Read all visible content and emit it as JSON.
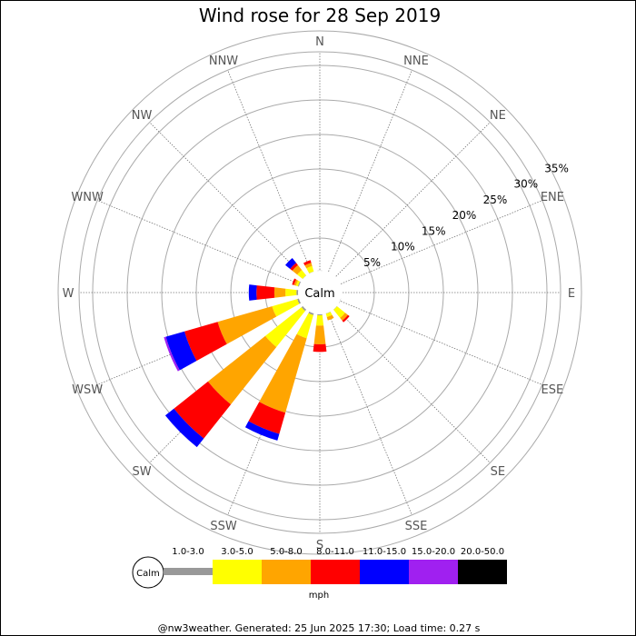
{
  "chart_data": {
    "type": "wind-rose",
    "title": "Wind rose for 28 Sep 2019",
    "center_label": "Calm",
    "direction_labels": [
      "N",
      "NNE",
      "NE",
      "ENE",
      "E",
      "ESE",
      "SE",
      "SSE",
      "S",
      "SSW",
      "SW",
      "WSW",
      "W",
      "WNW",
      "NW",
      "NNW"
    ],
    "ring_values": [
      5,
      10,
      15,
      20,
      25,
      30,
      35
    ],
    "ring_labels": [
      "5%",
      "10%",
      "15%",
      "20%",
      "25%",
      "30%",
      "35%"
    ],
    "speed_bins": [
      {
        "label": "1.0-3.0",
        "color": "#999999"
      },
      {
        "label": "3.0-5.0",
        "color": "#ffff00"
      },
      {
        "label": "5.0-8.0",
        "color": "#ffa500"
      },
      {
        "label": "8.0-11.0",
        "color": "#ff0000"
      },
      {
        "label": "11.0-15.0",
        "color": "#0000ff"
      },
      {
        "label": "15.0-20.0",
        "color": "#a020f0"
      },
      {
        "label": "20.0-50.0",
        "color": "#000000"
      }
    ],
    "unit": "mph",
    "series": [
      {
        "direction": "N",
        "values": [
          0.3,
          0,
          0,
          0,
          0,
          0,
          0
        ]
      },
      {
        "direction": "NNE",
        "values": [
          0.2,
          0,
          0,
          0,
          0,
          0,
          0
        ]
      },
      {
        "direction": "NE",
        "values": [
          0.2,
          0,
          0,
          0,
          0,
          0,
          0
        ]
      },
      {
        "direction": "ENE",
        "values": [
          0.2,
          0,
          0,
          0,
          0,
          0,
          0
        ]
      },
      {
        "direction": "E",
        "values": [
          0.2,
          0,
          0,
          0,
          0,
          0,
          0
        ]
      },
      {
        "direction": "ESE",
        "values": [
          0.3,
          0,
          0,
          0,
          0,
          0,
          0
        ]
      },
      {
        "direction": "SE",
        "values": [
          0.3,
          1.5,
          0.5,
          0.3,
          0,
          0,
          0
        ]
      },
      {
        "direction": "SSE",
        "values": [
          0.3,
          0.5,
          0.5,
          0,
          0,
          0,
          0
        ]
      },
      {
        "direction": "S",
        "values": [
          0.4,
          1.5,
          2.7,
          1.1,
          0,
          0,
          0
        ]
      },
      {
        "direction": "SSW",
        "values": [
          0.5,
          3.5,
          11.2,
          3.2,
          1.0,
          0,
          0
        ]
      },
      {
        "direction": "SW",
        "values": [
          0.5,
          6.7,
          10.6,
          6.3,
          1.6,
          0,
          0
        ]
      },
      {
        "direction": "WSW",
        "values": [
          0.5,
          3.8,
          8.2,
          5.0,
          2.8,
          0.3,
          0
        ]
      },
      {
        "direction": "W",
        "values": [
          0.5,
          1.6,
          1.6,
          2.6,
          1.1,
          0,
          0
        ]
      },
      {
        "direction": "WNW",
        "values": [
          0.4,
          0.3,
          0.3,
          0.3,
          0,
          0,
          0
        ]
      },
      {
        "direction": "NW",
        "values": [
          0.3,
          1.0,
          0.9,
          0.4,
          0.9,
          0,
          0
        ]
      },
      {
        "direction": "NNW",
        "values": [
          0.3,
          0.8,
          0.5,
          0.4,
          0,
          0,
          0
        ]
      }
    ]
  },
  "footer": {
    "text": "@nw3weather. Generated: 25 Jun 2025 17:30; Load time: 0.27 s"
  }
}
